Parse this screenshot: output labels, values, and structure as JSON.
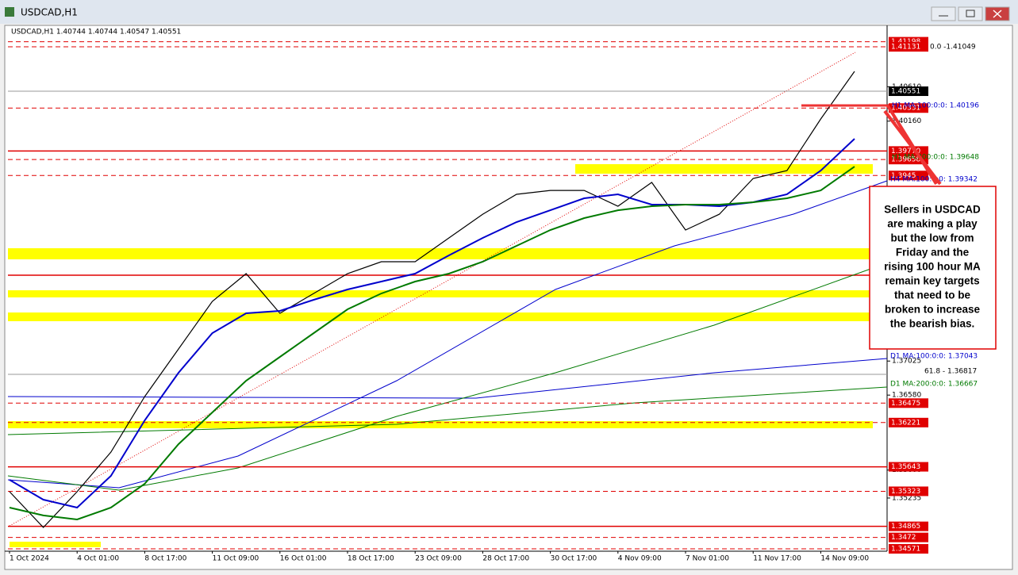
{
  "window": {
    "title": "USDCAD,H1"
  },
  "chart_data": {
    "type": "line",
    "title": "USDCAD,H1 1.40744 1.40744 1.40547 1.40551",
    "categories": [
      "1 Oct 2024",
      null,
      "4 Oct 01:00",
      null,
      "8 Oct 17:00",
      null,
      "11 Oct 09:00",
      null,
      "16 Oct 01:00",
      null,
      "18 Oct 17:00",
      null,
      "23 Oct 09:00",
      null,
      "28 Oct 17:00",
      null,
      "30 Oct 17:00",
      null,
      "4 Nov 09:00",
      null,
      "7 Nov 01:00",
      null,
      "11 Nov 17:00",
      null,
      "14 Nov 09:00",
      null
    ],
    "series": [
      {
        "name": "USDCAD",
        "color": "#000000",
        "values": [
          1.35318,
          1.34851,
          1.35318,
          1.35836,
          1.36561,
          1.37183,
          1.37805,
          1.38167,
          1.37649,
          1.37908,
          1.38167,
          1.38323,
          1.38323,
          1.38634,
          1.38944,
          1.39204,
          1.39255,
          1.39255,
          1.39048,
          1.39359,
          1.38737,
          1.38944,
          1.39411,
          1.39514,
          1.40188,
          1.4081
        ]
      },
      {
        "name": "H1 MA:100:0:0: 1.40196",
        "color": "#0000cc",
        "values": [
          1.35473,
          1.35214,
          1.3511,
          1.35525,
          1.3625,
          1.36872,
          1.3739,
          1.37649,
          1.3768,
          1.37825,
          1.3796,
          1.38064,
          1.38167,
          1.38406,
          1.38634,
          1.38841,
          1.38996,
          1.39152,
          1.39204,
          1.39069,
          1.39069,
          1.39048,
          1.391,
          1.39204,
          1.39514,
          1.39929
        ]
      },
      {
        "name": "H1 MA:200:0:0: 1.39648",
        "color": "#007a00",
        "values": [
          1.3511,
          1.35007,
          1.34955,
          1.3511,
          1.35421,
          1.35939,
          1.36354,
          1.36768,
          1.37079,
          1.3739,
          1.37701,
          1.37908,
          1.38064,
          1.38167,
          1.38323,
          1.3853,
          1.38737,
          1.38893,
          1.38996,
          1.39048,
          1.39069,
          1.39069,
          1.391,
          1.39152,
          1.39255,
          1.39566
        ]
      }
    ],
    "ylim": [
      1.3454,
      1.4137
    ],
    "yticks": [
      {
        "value": 1.4061,
        "label": "1.40610"
      },
      {
        "value": 1.4016,
        "label": "1.40160"
      },
      1.37025,
      {
        "value": 1.3658,
        "label": "1.36580"
      },
      {
        "value": 1.356,
        "label": "1.35600"
      },
      1.35235
    ],
    "levels": [
      {
        "value": 1.41198,
        "style": "dashed"
      },
      {
        "value": 1.41131,
        "style": "dashed"
      },
      {
        "value": 1.40331,
        "style": "dashed"
      },
      {
        "value": {
          "value": 1.3977,
          "label": "1.39770"
        },
        "style": "solid"
      },
      {
        "value": 1.39658,
        "style": "dashed"
      },
      {
        "value": 1.3945,
        "style": "dashed"
      },
      {
        "value": 1.36475,
        "style": "dashed"
      },
      {
        "value": 1.36221,
        "style": "dashed"
      },
      {
        "value": 1.35643,
        "style": "solid"
      },
      {
        "value": 1.35323,
        "style": "dashed"
      },
      {
        "value": 1.34865,
        "style": "solid"
      },
      {
        "value": 1.3472,
        "style": "dashed"
      },
      {
        "value": 1.34571,
        "style": "dashed"
      }
    ],
    "current_price": 1.40551,
    "level_color": "#e00000",
    "annotations": [
      "0.0 -1.41049",
      "61.8 - 1.36817",
      "H4 MA:100:0:0: 1.39342",
      "D1 MA:100:0:0: 1.37043",
      "D1 MA:200:0:0: 1.36667"
    ],
    "note": [
      "Sellers in USDCAD",
      "are making a play",
      "but the low from",
      "Friday and the",
      "rising 100 hour MA",
      "remain key targets",
      "that need to be",
      "broken to increase",
      "the bearish bias."
    ]
  }
}
